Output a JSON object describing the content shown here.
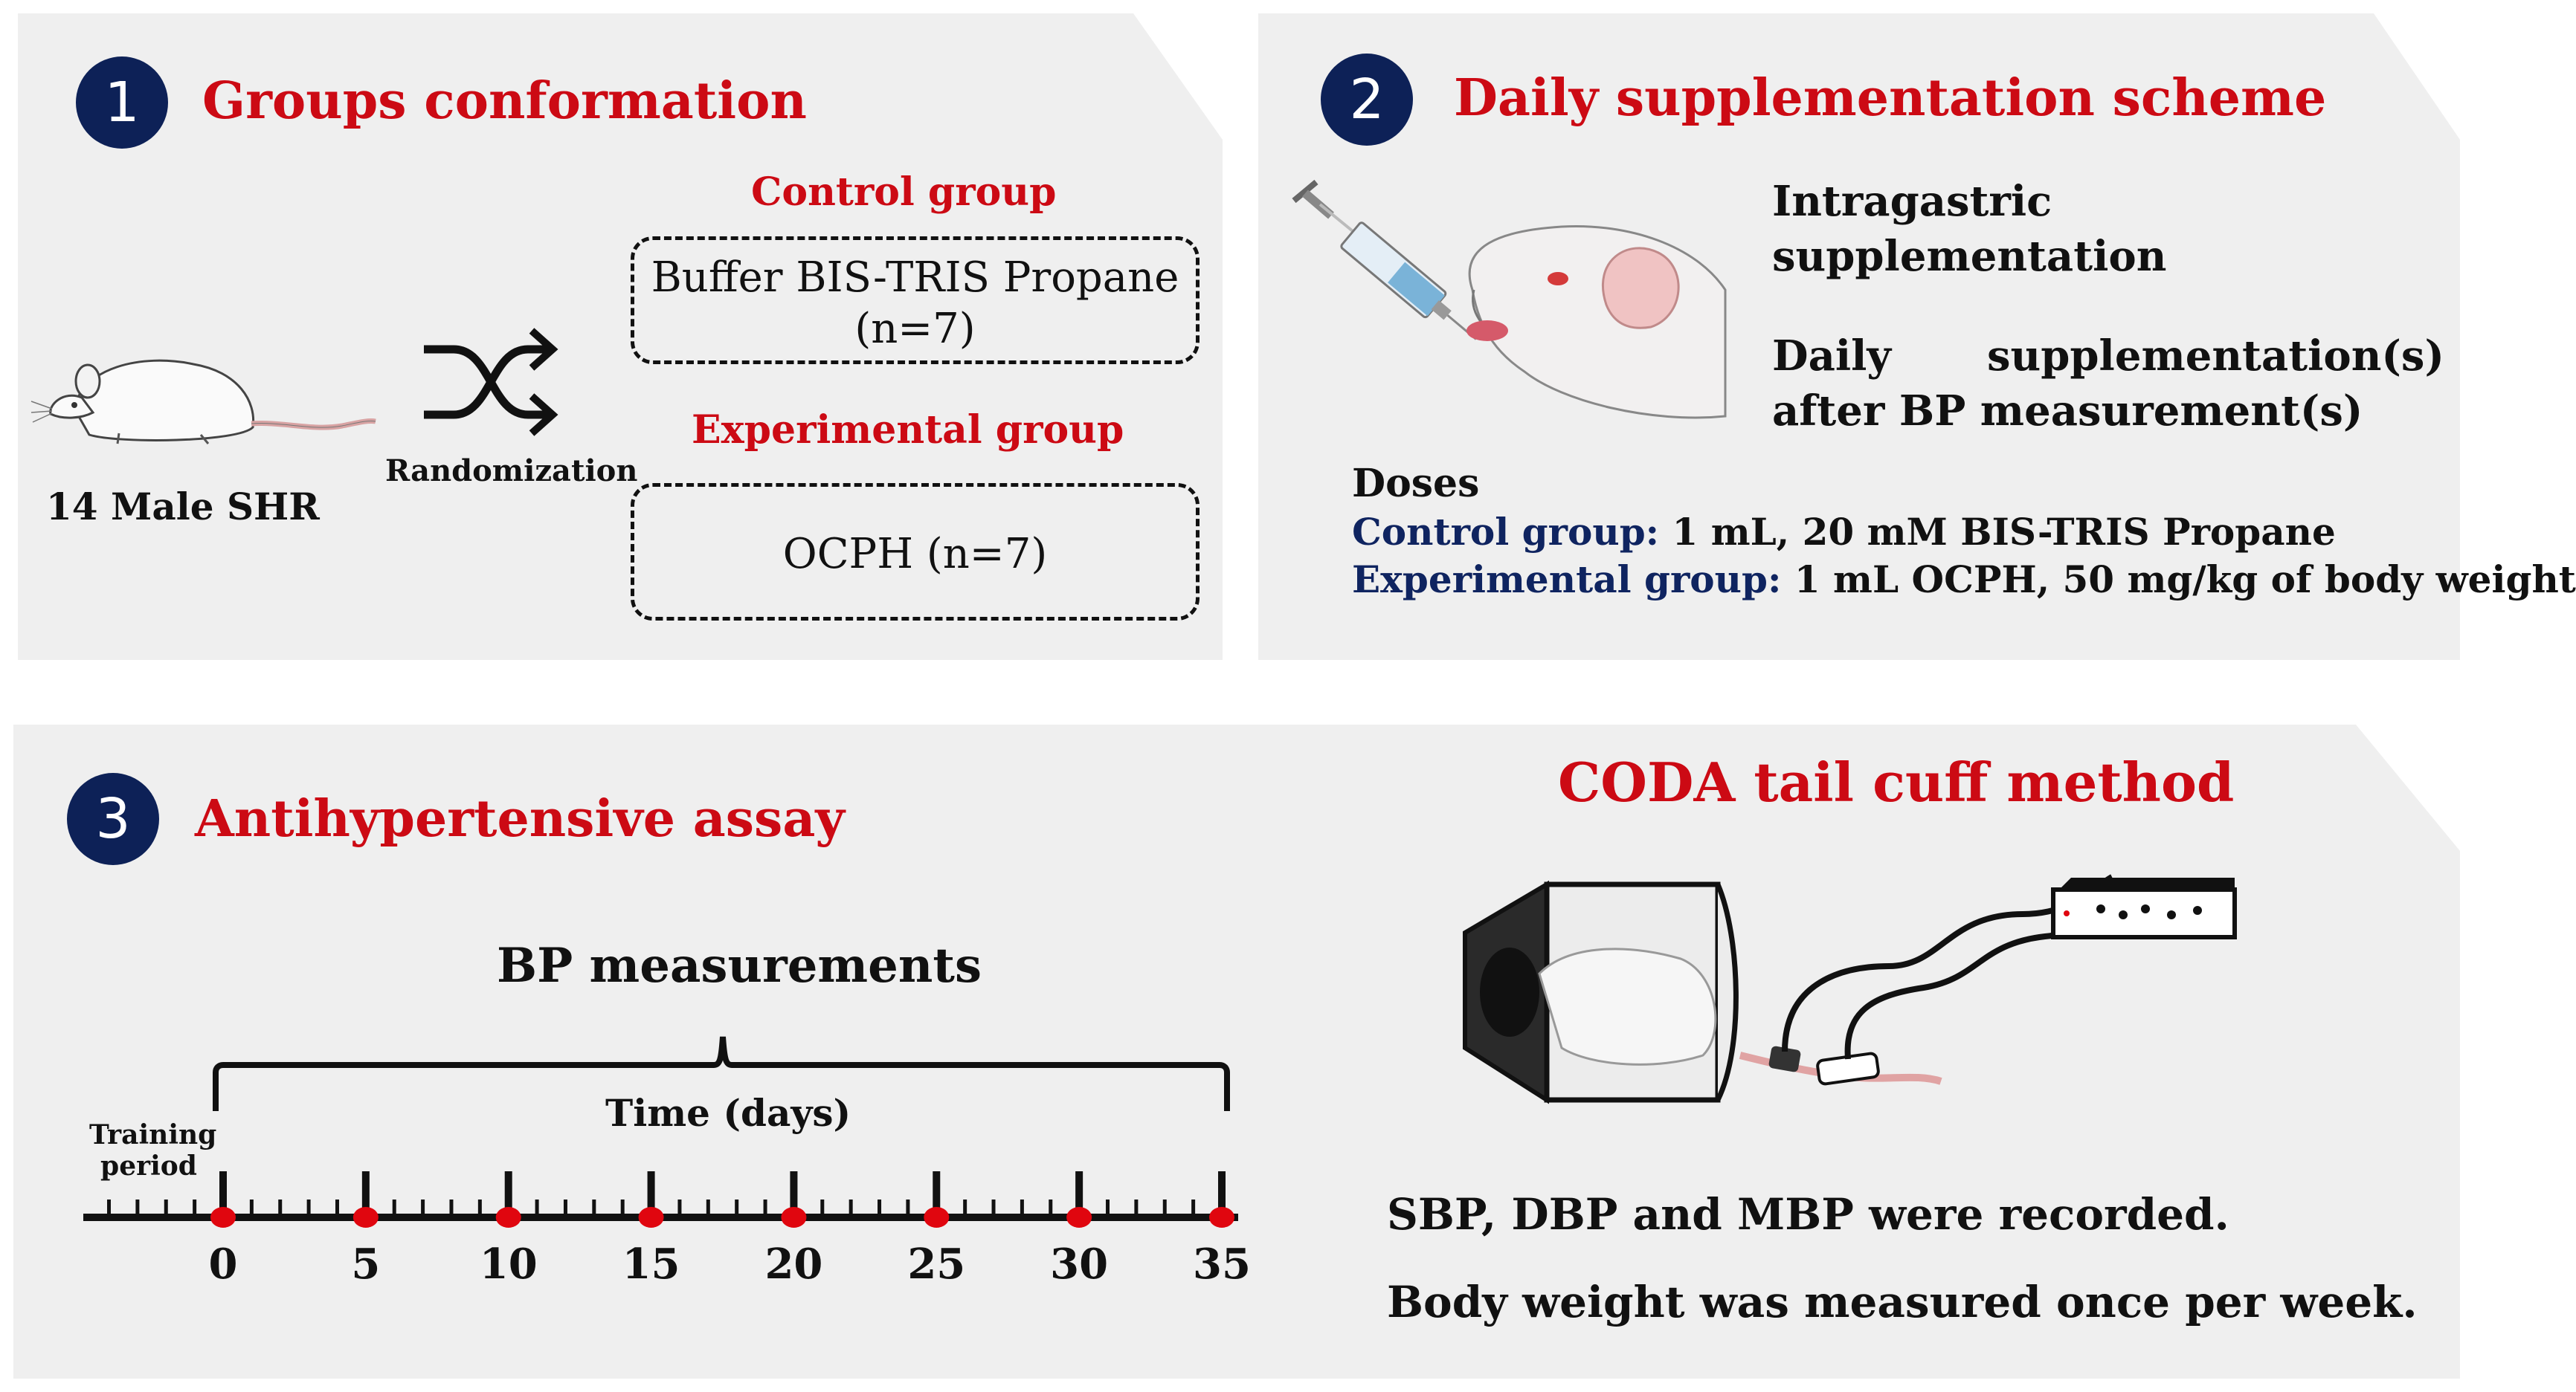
{
  "panel1": {
    "number": "1",
    "title": "Groups conformation",
    "rats_label": "14 Male SHR",
    "randomization_label": "Randomization",
    "control": {
      "header": "Control group",
      "box_line1": "Buffer BIS-TRIS Propane",
      "box_line2": "(n=7)"
    },
    "experimental": {
      "header": "Experimental group",
      "box_text": "OCPH (n=7)"
    }
  },
  "panel2": {
    "number": "2",
    "title": "Daily supplementation scheme",
    "intragastric_line1": "Intragastric",
    "intragastric_line2": "supplementation",
    "daily_word": "Daily",
    "supp_word": "supplementation(s)",
    "after_line": "after BP measurement(s)",
    "doses_label": "Doses",
    "control_label": "Control group:",
    "control_dose": "1 mL, 20 mM BIS-TRIS Propane",
    "experimental_label": "Experimental group:",
    "experimental_dose": "1 mL OCPH, 50 mg/kg of body weight"
  },
  "panel3": {
    "number": "3",
    "title": "Antihypertensive assay",
    "bp_measurements": "BP measurements",
    "time_label": "Time (days)",
    "training_line1": "Training",
    "training_line2": "period",
    "coda_title": "CODA tail cuff method",
    "recorded_text": "SBP, DBP and MBP were recorded.",
    "weight_text": "Body weight was measured once per week."
  },
  "chart_data": {
    "type": "timeline",
    "x": [
      0,
      5,
      10,
      15,
      20,
      25,
      30,
      35
    ],
    "tick_labels": [
      "0",
      "5",
      "10",
      "15",
      "20",
      "25",
      "30",
      "35"
    ],
    "xlabel": "Time (days)",
    "marker_color": "#e0060f"
  },
  "colors": {
    "accent_red": "#cc0a14",
    "navy": "#0d2157",
    "panel_bg": "#efefef"
  }
}
